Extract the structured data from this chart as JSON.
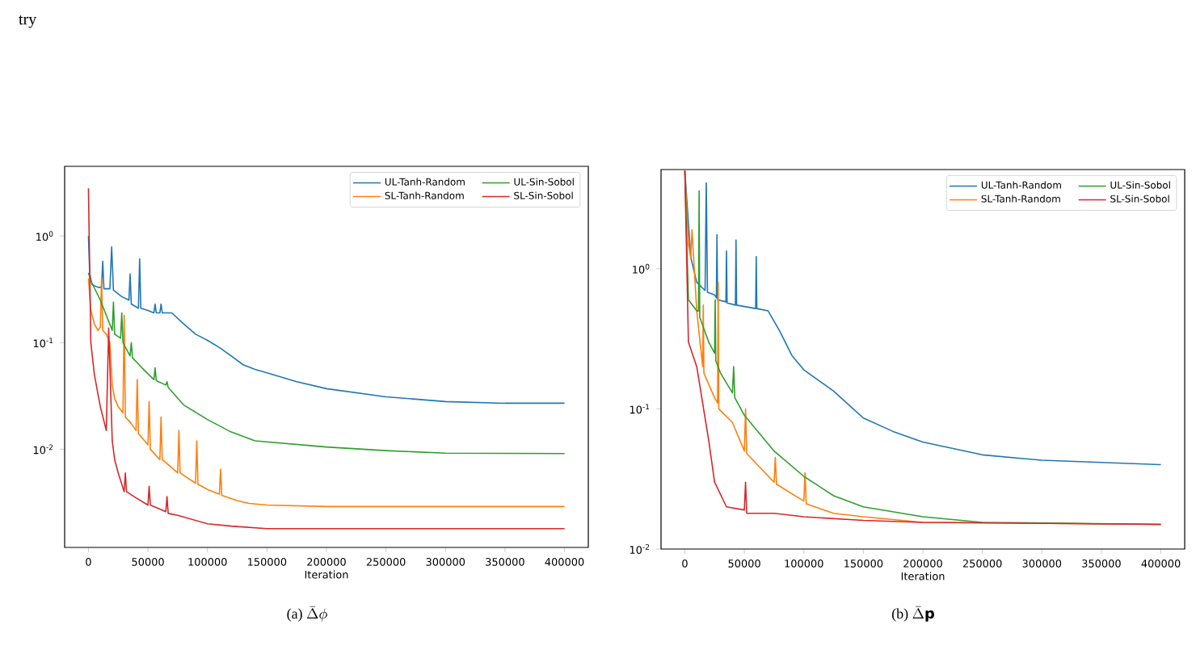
{
  "chart_data": [
    {
      "type": "line",
      "title": "\\text{(a) }\\bar{\\Delta}\\phi",
      "xlabel": "Iteration",
      "log": "y",
      "legend": "top right",
      "annotations": [
        "try"
      ],
      "xlim": [
        -20000,
        420000
      ],
      "xticks": [
        0,
        50000,
        100000,
        150000,
        200000,
        250000,
        300000,
        350000,
        400000
      ],
      "ylim": [
        0.0012,
        4.5
      ],
      "yticks": [
        {
          "value": 1,
          "label": "10$^{0}$"
        },
        {
          "value": 0.1,
          "label": "10$^{-1}$"
        },
        {
          "value": 0.01,
          "label": "10$^{-2}$"
        }
      ],
      "series": [
        {
          "name": "UL-Tanh-Random",
          "color": "#1f77b4",
          "x": [
            0,
            1000,
            3000,
            8000,
            11000,
            12000,
            13000,
            18000,
            19500,
            21000,
            28000,
            34000,
            35000,
            36000,
            42000,
            43000,
            44000,
            50000,
            55000,
            56000,
            57000,
            60000,
            61000,
            62000,
            70000,
            80000,
            90000,
            100000,
            110000,
            120000,
            130000,
            140000,
            150000,
            175000,
            200000,
            250000,
            300000,
            350000,
            400000
          ],
          "values": [
            1.0,
            0.45,
            0.35,
            0.33,
            0.33,
            0.58,
            0.32,
            0.32,
            0.79,
            0.31,
            0.27,
            0.25,
            0.44,
            0.23,
            0.21,
            0.61,
            0.21,
            0.2,
            0.19,
            0.23,
            0.19,
            0.19,
            0.23,
            0.19,
            0.19,
            0.15,
            0.12,
            0.105,
            0.09,
            0.075,
            0.062,
            0.056,
            0.052,
            0.043,
            0.037,
            0.031,
            0.028,
            0.027,
            0.027
          ]
        },
        {
          "name": "SL-Tanh-Random",
          "color": "#ff7f0e",
          "x": [
            0,
            2000,
            5000,
            8000,
            10000,
            11000,
            12000,
            15000,
            18000,
            20000,
            22000,
            25000,
            29000,
            30000,
            31000,
            35000,
            40000,
            41000,
            42000,
            50000,
            51000,
            52000,
            60000,
            61000,
            62000,
            75000,
            76000,
            77000,
            90000,
            91000,
            92000,
            100000,
            110000,
            111000,
            112000,
            125000,
            135000,
            150000,
            200000,
            300000,
            400000
          ],
          "values": [
            0.4,
            0.2,
            0.15,
            0.13,
            0.14,
            0.41,
            0.13,
            0.12,
            0.1,
            0.04,
            0.03,
            0.025,
            0.022,
            0.18,
            0.02,
            0.018,
            0.015,
            0.045,
            0.014,
            0.011,
            0.028,
            0.01,
            0.008,
            0.02,
            0.008,
            0.006,
            0.015,
            0.006,
            0.0048,
            0.012,
            0.0047,
            0.0042,
            0.0038,
            0.0065,
            0.0037,
            0.0033,
            0.0031,
            0.003,
            0.0029,
            0.0029,
            0.0029
          ]
        },
        {
          "name": "UL-Sin-Sobol",
          "color": "#2ca02c",
          "x": [
            0,
            2000,
            10000,
            20000,
            21000,
            22000,
            27000,
            28000,
            29000,
            35000,
            36000,
            37000,
            45000,
            55000,
            56000,
            57000,
            65000,
            66000,
            67000,
            80000,
            100000,
            120000,
            140000,
            200000,
            250000,
            300000,
            400000
          ],
          "values": [
            0.45,
            0.38,
            0.25,
            0.13,
            0.24,
            0.12,
            0.11,
            0.19,
            0.1,
            0.075,
            0.1,
            0.072,
            0.058,
            0.045,
            0.058,
            0.044,
            0.04,
            0.043,
            0.038,
            0.026,
            0.019,
            0.0145,
            0.012,
            0.0105,
            0.0097,
            0.0092,
            0.0091
          ]
        },
        {
          "name": "SL-Sin-Sobol",
          "color": "#d62728",
          "x": [
            0,
            2000,
            5000,
            10000,
            15000,
            17000,
            18000,
            20000,
            22000,
            25000,
            30000,
            31000,
            32000,
            40000,
            50000,
            51000,
            52000,
            65000,
            66000,
            67000,
            75000,
            100000,
            120000,
            150000,
            200000,
            300000,
            400000
          ],
          "values": [
            2.8,
            0.1,
            0.05,
            0.025,
            0.015,
            0.137,
            0.06,
            0.012,
            0.008,
            0.006,
            0.004,
            0.006,
            0.004,
            0.0035,
            0.003,
            0.0045,
            0.003,
            0.0026,
            0.0036,
            0.0025,
            0.0024,
            0.002,
            0.0019,
            0.0018,
            0.0018,
            0.0018,
            0.0018
          ]
        }
      ]
    },
    {
      "type": "line",
      "title": "\\text{(b) }\\bar{\\Delta}\\mathbf{p}",
      "xlabel": "Iteration",
      "log": "y",
      "legend": "top right",
      "xlim": [
        -20000,
        420000
      ],
      "xticks": [
        0,
        50000,
        100000,
        150000,
        200000,
        250000,
        300000,
        350000,
        400000
      ],
      "ylim": [
        0.01,
        5.1
      ],
      "yticks": [
        {
          "value": 1,
          "label": "10$^{0}$"
        },
        {
          "value": 0.1,
          "label": "10$^{-1}$"
        },
        {
          "value": 0.01,
          "label": "10$^{-2}$"
        }
      ],
      "series": [
        {
          "name": "UL-Tanh-Random",
          "color": "#1f77b4",
          "x": [
            0,
            5000,
            10000,
            17000,
            18000,
            19000,
            25000,
            26500,
            27000,
            27500,
            34500,
            35000,
            35500,
            42500,
            43000,
            43500,
            59500,
            60000,
            60500,
            70000,
            80000,
            90000,
            100000,
            125000,
            150000,
            175000,
            200000,
            250000,
            300000,
            400000
          ],
          "values": [
            5,
            1.2,
            0.8,
            0.7,
            4.1,
            0.68,
            0.65,
            0.62,
            1.75,
            0.6,
            0.58,
            1.34,
            0.57,
            0.55,
            1.6,
            0.55,
            0.52,
            1.22,
            0.52,
            0.5,
            0.355,
            0.24,
            0.19,
            0.134,
            0.086,
            0.069,
            0.058,
            0.047,
            0.043,
            0.04
          ]
        },
        {
          "name": "SL-Tanh-Random",
          "color": "#ff7f0e",
          "x": [
            0,
            3000,
            5000,
            6000,
            10000,
            15000,
            15500,
            16000,
            25000,
            27500,
            28000,
            28500,
            40000,
            50000,
            51000,
            52000,
            75000,
            76000,
            77000,
            100000,
            101000,
            102000,
            125000,
            150000,
            200000,
            400000
          ],
          "values": [
            5,
            1.5,
            1.2,
            1.9,
            0.5,
            0.2,
            0.55,
            0.18,
            0.12,
            0.11,
            0.8,
            0.1,
            0.08,
            0.05,
            0.1,
            0.048,
            0.03,
            0.045,
            0.029,
            0.022,
            0.035,
            0.021,
            0.018,
            0.017,
            0.0155,
            0.015
          ]
        },
        {
          "name": "UL-Sin-Sobol",
          "color": "#2ca02c",
          "x": [
            0,
            3000,
            10000,
            11500,
            12000,
            12500,
            20000,
            25000,
            25500,
            26000,
            30000,
            40000,
            41000,
            42000,
            50000,
            75000,
            100000,
            125000,
            150000,
            200000,
            250000,
            400000
          ],
          "values": [
            5,
            0.6,
            0.5,
            0.5,
            3.6,
            0.45,
            0.3,
            0.25,
            0.6,
            0.22,
            0.18,
            0.13,
            0.2,
            0.12,
            0.09,
            0.05,
            0.033,
            0.024,
            0.02,
            0.017,
            0.0155,
            0.015
          ]
        },
        {
          "name": "SL-Sin-Sobol",
          "color": "#d62728",
          "x": [
            0,
            3000,
            10000,
            20000,
            25000,
            35000,
            50000,
            51000,
            52000,
            75000,
            100000,
            150000,
            200000,
            400000
          ],
          "values": [
            5,
            0.3,
            0.2,
            0.06,
            0.03,
            0.02,
            0.019,
            0.03,
            0.018,
            0.018,
            0.017,
            0.016,
            0.0155,
            0.015
          ]
        }
      ]
    }
  ]
}
